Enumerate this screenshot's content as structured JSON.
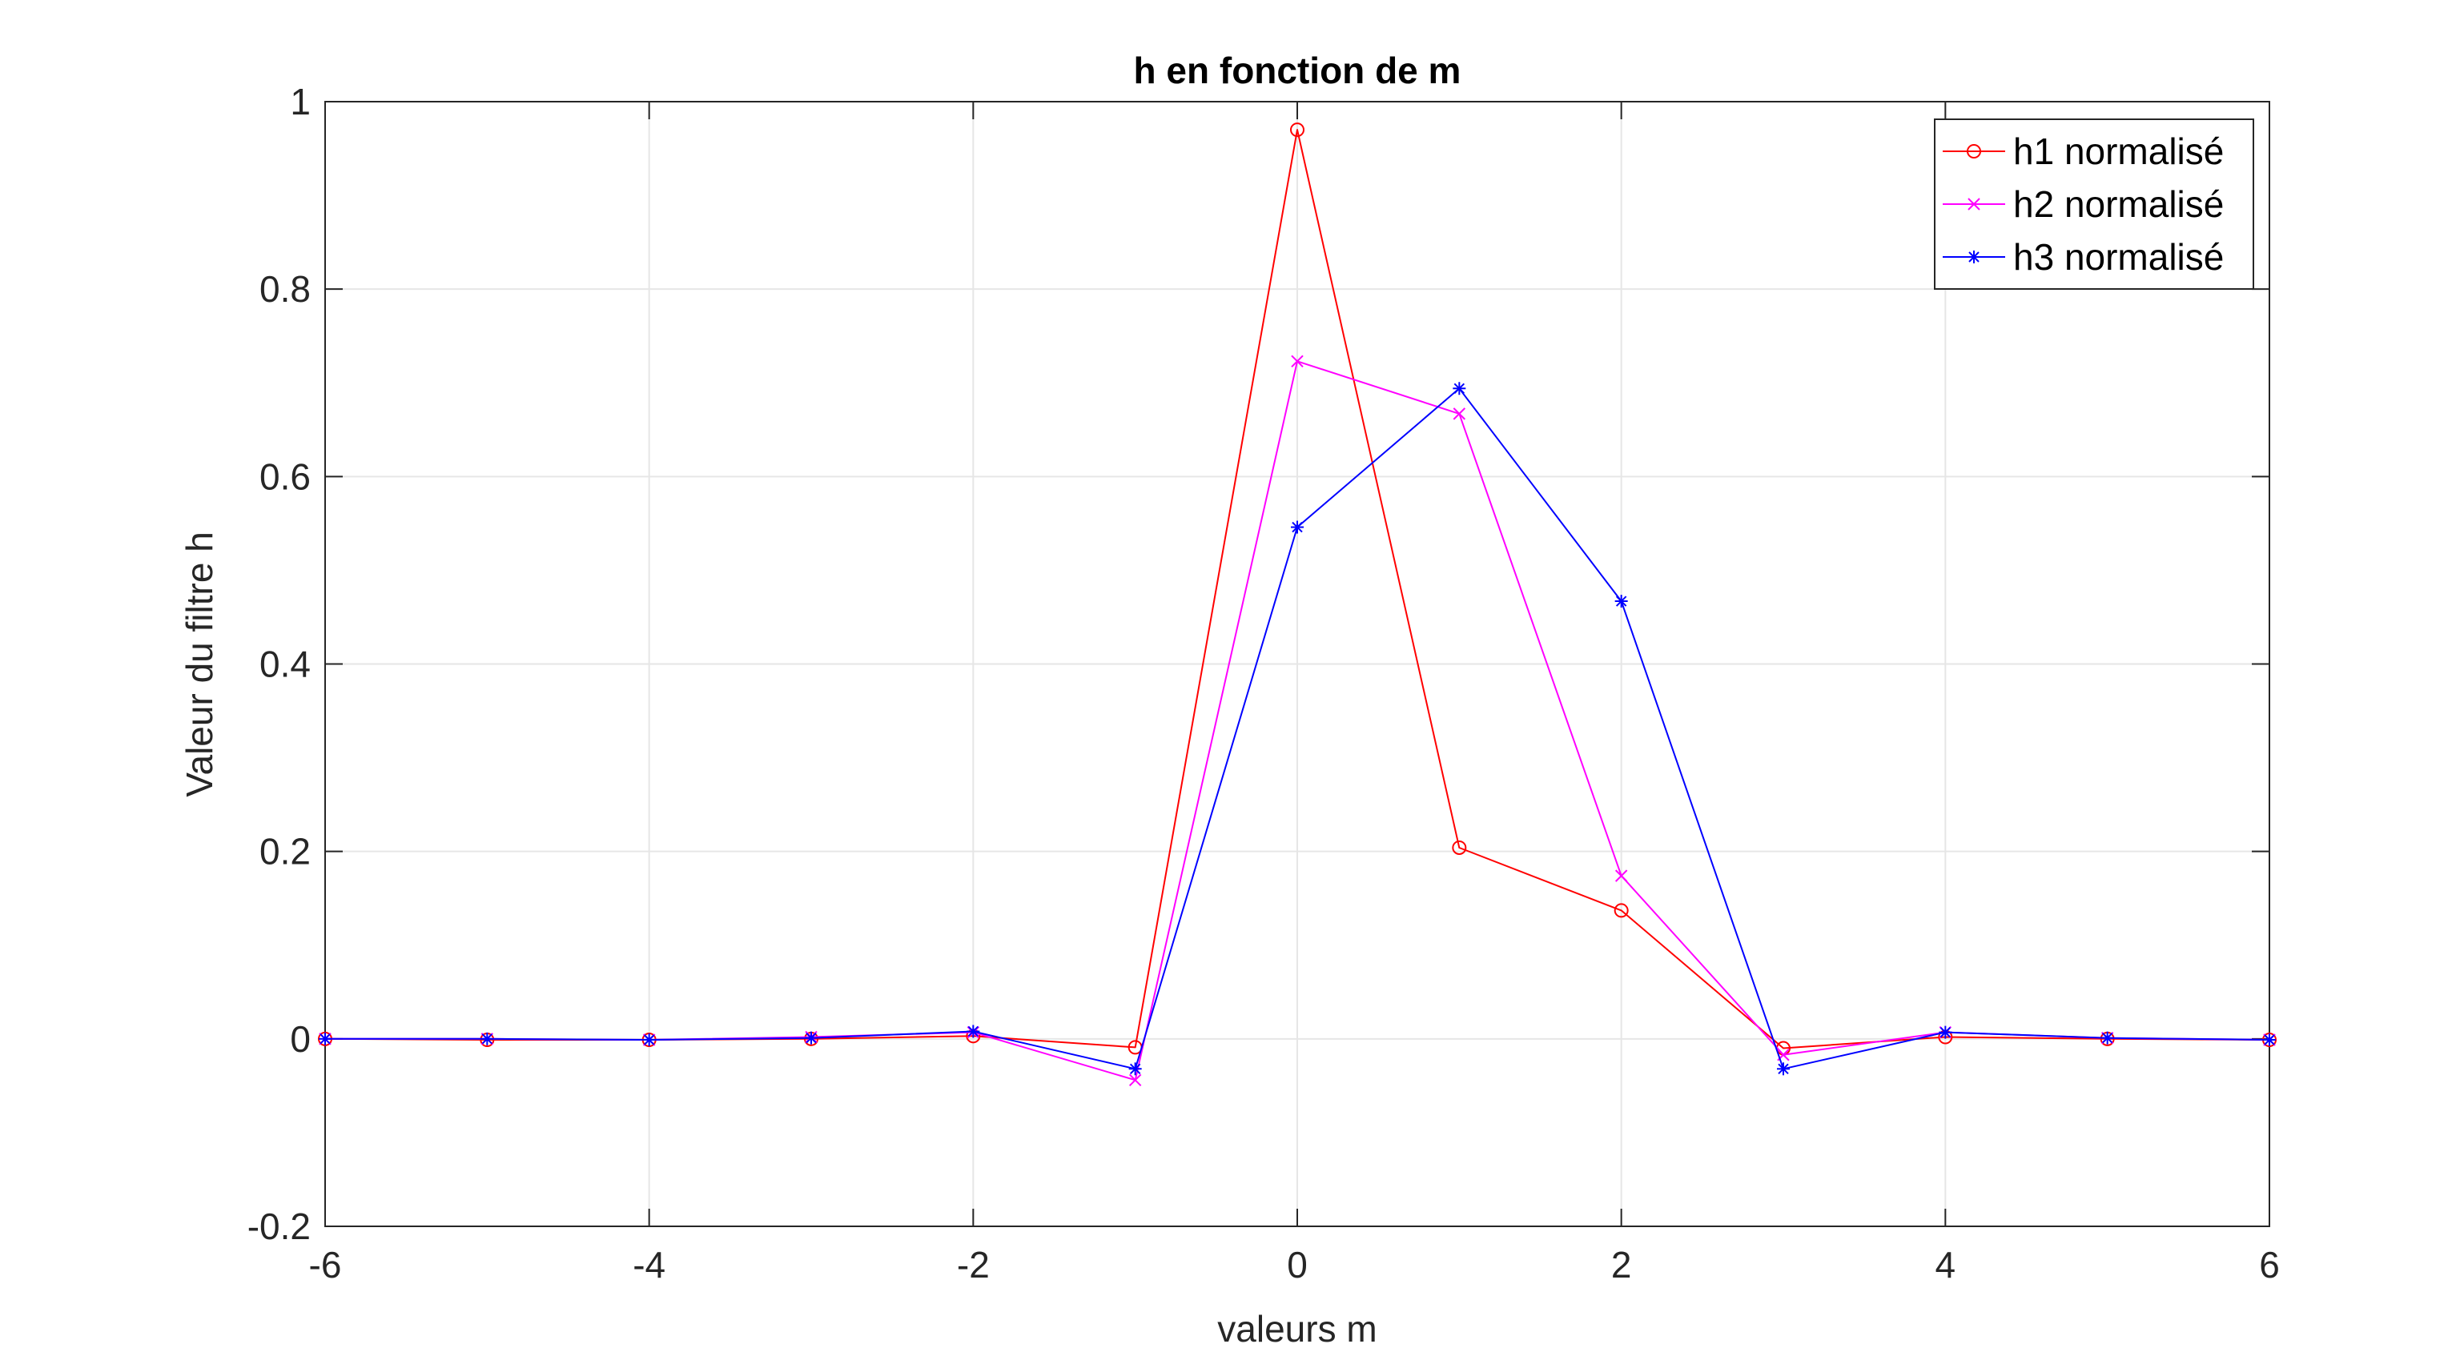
{
  "chart_data": {
    "type": "line",
    "title": "h en fonction de m",
    "xlabel": "valeurs m",
    "ylabel": "Valeur du filtre h",
    "xlim": [
      -6,
      6
    ],
    "ylim": [
      -0.2,
      1
    ],
    "xticks": [
      -6,
      -4,
      -2,
      0,
      2,
      4,
      6
    ],
    "yticks": [
      -0.2,
      0,
      0.2,
      0.4,
      0.6,
      0.8,
      1
    ],
    "ytick_labels": [
      "-0.2",
      "0",
      "0.2",
      "0.4",
      "0.6",
      "0.8",
      "1"
    ],
    "grid": true,
    "legend_position": "top-right",
    "x": [
      -6,
      -5,
      -4,
      -3,
      -2,
      -1,
      0,
      1,
      2,
      3,
      4,
      5,
      6
    ],
    "series": [
      {
        "name": "h1 normalisé",
        "color": "#ff0000",
        "marker": "circle",
        "values": [
          0.0,
          -0.001,
          -0.001,
          0.0,
          0.003,
          -0.009,
          0.97,
          0.204,
          0.137,
          -0.01,
          0.002,
          0.0,
          -0.001
        ]
      },
      {
        "name": "h2 normalisé",
        "color": "#ff00ff",
        "marker": "x",
        "values": [
          0.0,
          0.0,
          -0.001,
          0.002,
          0.007,
          -0.044,
          0.723,
          0.667,
          0.174,
          -0.017,
          0.007,
          0.001,
          -0.001
        ]
      },
      {
        "name": "h3 normalisé",
        "color": "#0000ff",
        "marker": "star",
        "values": [
          0.0,
          0.0,
          -0.001,
          0.001,
          0.008,
          -0.032,
          0.546,
          0.694,
          0.467,
          -0.032,
          0.007,
          0.001,
          -0.001
        ]
      }
    ]
  }
}
